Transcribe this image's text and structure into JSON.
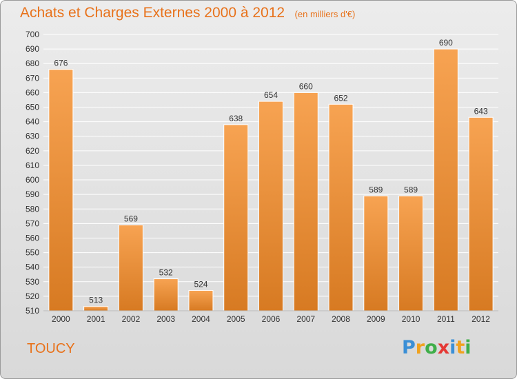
{
  "title": "Achats et Charges Externes 2000 à 2012",
  "subtitle": "(en milliers d'€)",
  "location": "TOUCY",
  "logo": {
    "text": "Proxiti",
    "letters": [
      {
        "ch": "P",
        "color": "#3a8fd6"
      },
      {
        "ch": "r",
        "color": "#f0a21e"
      },
      {
        "ch": "o",
        "color": "#3fae49"
      },
      {
        "ch": "x",
        "color": "#e53935"
      },
      {
        "ch": "i",
        "color": "#3a8fd6"
      },
      {
        "ch": "t",
        "color": "#f0a21e"
      },
      {
        "ch": "i",
        "color": "#3fae49"
      }
    ]
  },
  "colors": {
    "accent": "#e8721b",
    "bar_light": "#f7a352",
    "bar_dark": "#d77a22",
    "grid": "#ffffff",
    "text": "#333333"
  },
  "chart_data": {
    "type": "bar",
    "categories": [
      "2000",
      "2001",
      "2002",
      "2003",
      "2004",
      "2005",
      "2006",
      "2007",
      "2008",
      "2009",
      "2010",
      "2011",
      "2012"
    ],
    "values": [
      676,
      513,
      569,
      532,
      524,
      638,
      654,
      660,
      652,
      589,
      589,
      690,
      643
    ],
    "ylim": [
      510,
      700
    ],
    "ytick_step": 10,
    "grid": true,
    "data_labels": true
  }
}
